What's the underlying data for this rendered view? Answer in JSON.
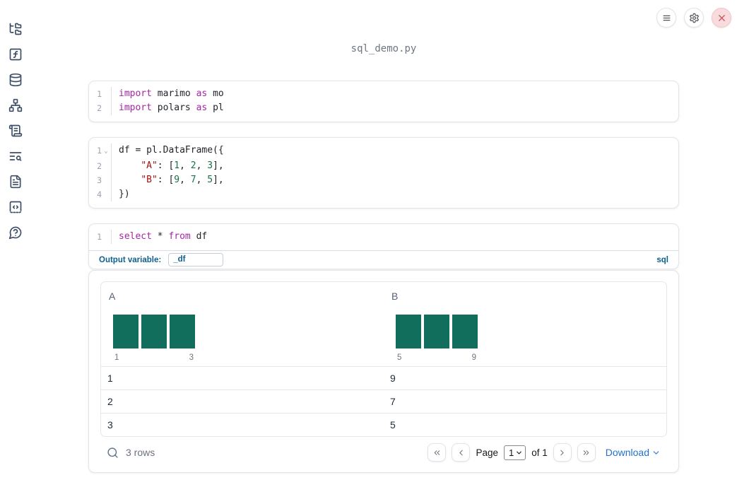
{
  "window": {
    "filename": "sql_demo.py",
    "controls": [
      {
        "name": "notebook-menu",
        "icon": "hamburger-icon"
      },
      {
        "name": "settings",
        "icon": "gear-icon"
      },
      {
        "name": "shutdown",
        "icon": "close-x-icon"
      }
    ]
  },
  "sidebar": {
    "items": [
      {
        "name": "file-explorer",
        "icon": "folder-tree-icon"
      },
      {
        "name": "variables",
        "icon": "function-square-icon"
      },
      {
        "name": "data-sources",
        "icon": "database-icon"
      },
      {
        "name": "dependency-graph",
        "icon": "network-icon"
      },
      {
        "name": "scratchpad",
        "icon": "scroll-text-icon"
      },
      {
        "name": "logs",
        "icon": "text-search-icon"
      },
      {
        "name": "documentation",
        "icon": "file-text-icon"
      },
      {
        "name": "snippets",
        "icon": "code-square-icon"
      },
      {
        "name": "help",
        "icon": "help-circle-icon"
      }
    ]
  },
  "colors": {
    "accent_blue": "#0e618e",
    "link_blue": "#2271cc",
    "keyword_purple": "#a626a4",
    "string_red": "#a11212",
    "number_green": "#177245",
    "histogram_teal": "#116e5c",
    "sidebar_icon_slate": "#3e4d66",
    "close_button_red": "#c9545c"
  },
  "cells": [
    {
      "language": "python",
      "lines": [
        {
          "num": "1",
          "tokens": [
            {
              "c": "kw",
              "t": "import"
            },
            {
              "c": "pl",
              "t": " marimo "
            },
            {
              "c": "kw",
              "t": "as"
            },
            {
              "c": "pl",
              "t": " mo"
            }
          ]
        },
        {
          "num": "2",
          "tokens": [
            {
              "c": "kw",
              "t": "import"
            },
            {
              "c": "pl",
              "t": " polars "
            },
            {
              "c": "kw",
              "t": "as"
            },
            {
              "c": "pl",
              "t": " pl"
            }
          ]
        }
      ]
    },
    {
      "language": "python",
      "lines": [
        {
          "num": "1",
          "fold": true,
          "tokens": [
            {
              "c": "pl",
              "t": "df = pl.DataFrame({"
            }
          ]
        },
        {
          "num": "2",
          "tokens": [
            {
              "c": "pl",
              "t": "    "
            },
            {
              "c": "str",
              "t": "\"A\""
            },
            {
              "c": "pl",
              "t": ": ["
            },
            {
              "c": "num",
              "t": "1"
            },
            {
              "c": "pl",
              "t": ", "
            },
            {
              "c": "num",
              "t": "2"
            },
            {
              "c": "pl",
              "t": ", "
            },
            {
              "c": "num",
              "t": "3"
            },
            {
              "c": "pl",
              "t": "],"
            }
          ]
        },
        {
          "num": "3",
          "tokens": [
            {
              "c": "pl",
              "t": "    "
            },
            {
              "c": "str",
              "t": "\"B\""
            },
            {
              "c": "pl",
              "t": ": ["
            },
            {
              "c": "num",
              "t": "9"
            },
            {
              "c": "pl",
              "t": ", "
            },
            {
              "c": "num",
              "t": "7"
            },
            {
              "c": "pl",
              "t": ", "
            },
            {
              "c": "num",
              "t": "5"
            },
            {
              "c": "pl",
              "t": "],"
            }
          ]
        },
        {
          "num": "4",
          "tokens": [
            {
              "c": "pl",
              "t": "})"
            }
          ]
        }
      ]
    },
    {
      "language": "sql",
      "lines": [
        {
          "num": "1",
          "tokens": [
            {
              "c": "kw",
              "t": "select"
            },
            {
              "c": "pl",
              "t": " * "
            },
            {
              "c": "kw",
              "t": "from"
            },
            {
              "c": "pl",
              "t": " df"
            }
          ]
        }
      ],
      "footer": {
        "label": "Output variable:",
        "variable": "_df",
        "language_badge": "sql"
      }
    }
  ],
  "output_table": {
    "columns": [
      {
        "header": "A",
        "histogram": {
          "bars": [
            1,
            1,
            1
          ],
          "min_label": "1",
          "max_label": "3"
        }
      },
      {
        "header": "B",
        "histogram": {
          "bars": [
            1,
            1,
            1
          ],
          "min_label": "5",
          "max_label": "9"
        }
      }
    ],
    "rows": [
      [
        "1",
        "9"
      ],
      [
        "2",
        "7"
      ],
      [
        "3",
        "5"
      ]
    ],
    "footer": {
      "row_count": "3 rows",
      "pagination": {
        "page_label": "Page",
        "page_value": "1",
        "of_label": "of 1"
      },
      "download_label": "Download"
    }
  }
}
